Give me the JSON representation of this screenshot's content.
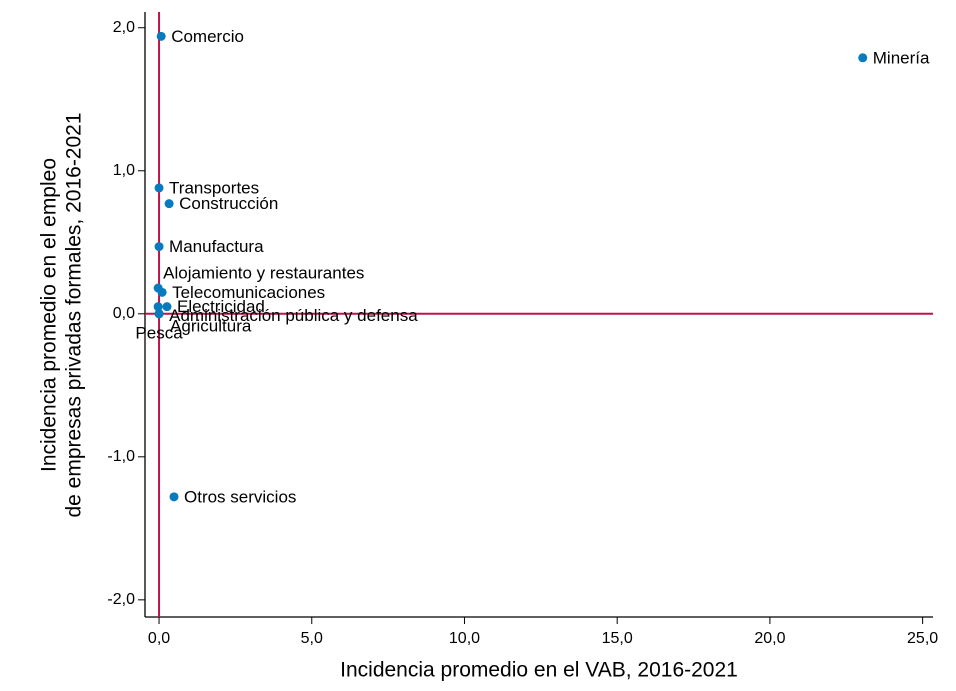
{
  "chart_data": {
    "type": "scatter",
    "x_label": "Incidencia promedio en el VAB, 2016-2021",
    "y_label": [
      "Incidencia promedio en el empleo",
      "de empresas privadas formales, 2016-2021"
    ],
    "xlim": [
      -0.46,
      25.34
    ],
    "ylim": [
      -2.12,
      2.11
    ],
    "xticks": [
      {
        "value": 0,
        "label": "0,0"
      },
      {
        "value": 5,
        "label": "5,0"
      },
      {
        "value": 10,
        "label": "10,0"
      },
      {
        "value": 15,
        "label": "15,0"
      },
      {
        "value": 20,
        "label": "20,0"
      },
      {
        "value": 25,
        "label": "25,0"
      }
    ],
    "yticks": [
      {
        "value": -2,
        "label": "-2,0"
      },
      {
        "value": -1,
        "label": "-1,0"
      },
      {
        "value": 0,
        "label": "0,0"
      },
      {
        "value": 1,
        "label": "1,0"
      },
      {
        "value": 2,
        "label": "2,0"
      }
    ],
    "color": "#0a7abf",
    "reference_color": "#c0134a",
    "reference_x": 0,
    "reference_y": 0,
    "series": [
      {
        "name": null,
        "color": "#0a7abf",
        "labels": [
          "Comercio",
          "Minería",
          "Transportes",
          "Construcción",
          "Manufactura",
          "Alojamiento y restaurantes",
          "Telecomunicaciones",
          "Electricidad",
          "Administración pública y defensa",
          "Agricultura",
          "Pesca",
          "Otros servicios"
        ],
        "x": [
          0.07,
          23.04,
          0.0,
          0.33,
          0.0,
          -0.03,
          0.1,
          0.26,
          -0.03,
          0.0,
          0.0,
          0.49
        ],
        "values": [
          1.94,
          1.79,
          0.88,
          0.77,
          0.47,
          0.18,
          0.15,
          0.05,
          0.05,
          0.0,
          0.0,
          -1.28
        ]
      }
    ]
  }
}
